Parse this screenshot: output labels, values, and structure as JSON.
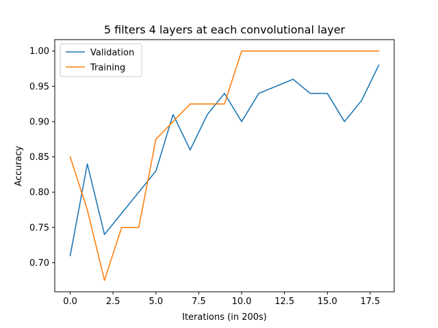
{
  "chart_data": {
    "type": "line",
    "title": "5 filters 4 layers at each convolutional layer",
    "xlabel": "Iterations (in 200s)",
    "ylabel": "Accuracy",
    "xlim": [
      -0.9,
      18.9
    ],
    "ylim": [
      0.6588,
      1.0162
    ],
    "xticks": [
      0,
      2.5,
      5,
      7.5,
      10,
      12.5,
      15,
      17.5
    ],
    "xtick_labels": [
      "0.0",
      "2.5",
      "5.0",
      "7.5",
      "10.0",
      "12.5",
      "15.0",
      "17.5"
    ],
    "yticks": [
      0.7,
      0.75,
      0.8,
      0.85,
      0.9,
      0.95,
      1.0
    ],
    "ytick_labels": [
      "0.70",
      "0.75",
      "0.80",
      "0.85",
      "0.90",
      "0.95",
      "1.00"
    ],
    "grid": false,
    "legend_position": "upper-left",
    "x": [
      0,
      1,
      2,
      3,
      4,
      5,
      6,
      7,
      8,
      9,
      10,
      11,
      12,
      13,
      14,
      15,
      16,
      17,
      18
    ],
    "series": [
      {
        "name": "Validation",
        "color": "#1f77b4",
        "values": [
          0.71,
          0.84,
          0.74,
          0.77,
          0.8,
          0.83,
          0.91,
          0.86,
          0.91,
          0.94,
          0.9,
          0.94,
          0.95,
          0.96,
          0.94,
          0.94,
          0.9,
          0.93,
          0.98
        ]
      },
      {
        "name": "Training",
        "color": "#ff7f0e",
        "values": [
          0.85,
          0.775,
          0.675,
          0.75,
          0.75,
          0.875,
          0.9,
          0.925,
          0.925,
          0.925,
          1.0,
          1.0,
          1.0,
          1.0,
          1.0,
          1.0,
          1.0,
          1.0,
          1.0
        ]
      }
    ]
  }
}
